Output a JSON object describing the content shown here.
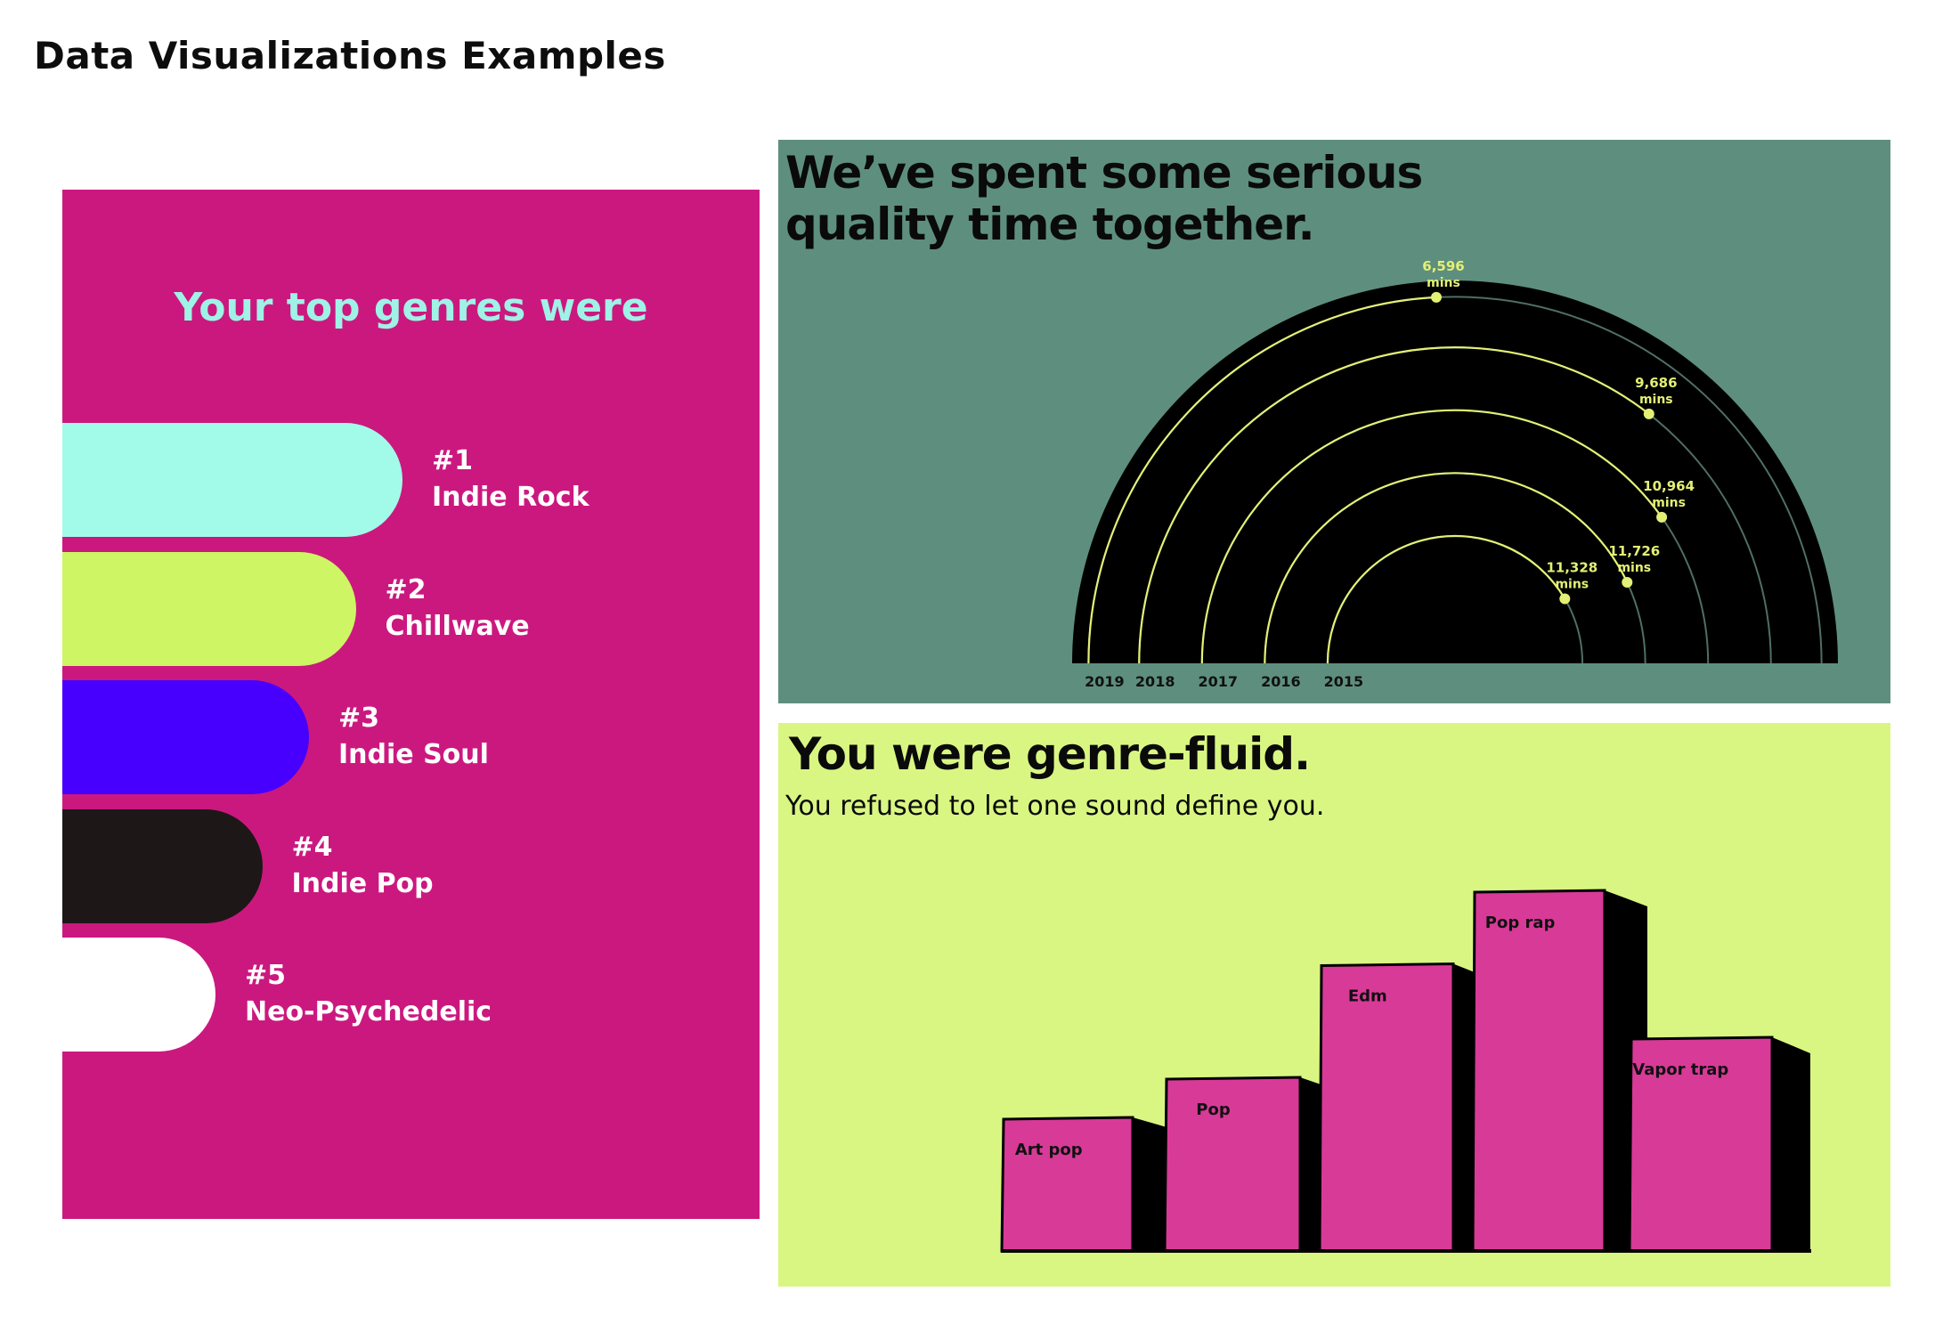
{
  "page": {
    "title": "Data Visualizations Examples"
  },
  "panels": {
    "genres": {
      "background": "#cb187f"
    },
    "rainbow": {
      "title_line1": "We’ve spent some serious",
      "title_line2": "quality time together.",
      "background": "#5e8f7e",
      "arc_color": "#000000",
      "line_color": "#e3f075"
    },
    "fluid": {
      "title": "You were genre-fluid.",
      "subtitle": "You refused to let one sound define you.",
      "background": "#d9f683",
      "bar_color": "#d83a98",
      "side_color": "#000000"
    }
  },
  "chart_data": [
    {
      "type": "bar",
      "title": "Your top genres were",
      "orientation": "horizontal",
      "items": [
        {
          "rank": "#1",
          "genre": "Indie Rock",
          "value": 5,
          "color": "#a2fbe9"
        },
        {
          "rank": "#2",
          "genre": "Chillwave",
          "value": 4,
          "color": "#cdf564"
        },
        {
          "rank": "#3",
          "genre": "Indie Soul",
          "value": 3,
          "color": "#4800fe"
        },
        {
          "rank": "#4",
          "genre": "Indie Pop",
          "value": 2,
          "color": "#1e1717"
        },
        {
          "rank": "#5",
          "genre": "Neo-Psychedelic",
          "value": 1,
          "color": "#ffffff"
        }
      ]
    },
    {
      "type": "radial",
      "title": "We’ve spent some serious quality time together.",
      "unit": "mins",
      "series": [
        {
          "year": "2015",
          "value": 11328,
          "value_label": "11,328",
          "unit_label": "mins"
        },
        {
          "year": "2016",
          "value": 11726,
          "value_label": "11,726",
          "unit_label": "mins"
        },
        {
          "year": "2017",
          "value": 10964,
          "value_label": "10,964",
          "unit_label": "mins"
        },
        {
          "year": "2018",
          "value": 9686,
          "value_label": "9,686",
          "unit_label": "mins"
        },
        {
          "year": "2019",
          "value": 6596,
          "value_label": "6,596",
          "unit_label": "mins"
        }
      ]
    },
    {
      "type": "bar",
      "title": "You were genre-fluid.",
      "subtitle": "You refused to let one sound define you.",
      "categories": [
        "Art pop",
        "Pop",
        "Edm",
        "Pop rap",
        "Vapor trap"
      ],
      "values": [
        1.0,
        1.3,
        2.15,
        2.7,
        1.6
      ]
    }
  ]
}
